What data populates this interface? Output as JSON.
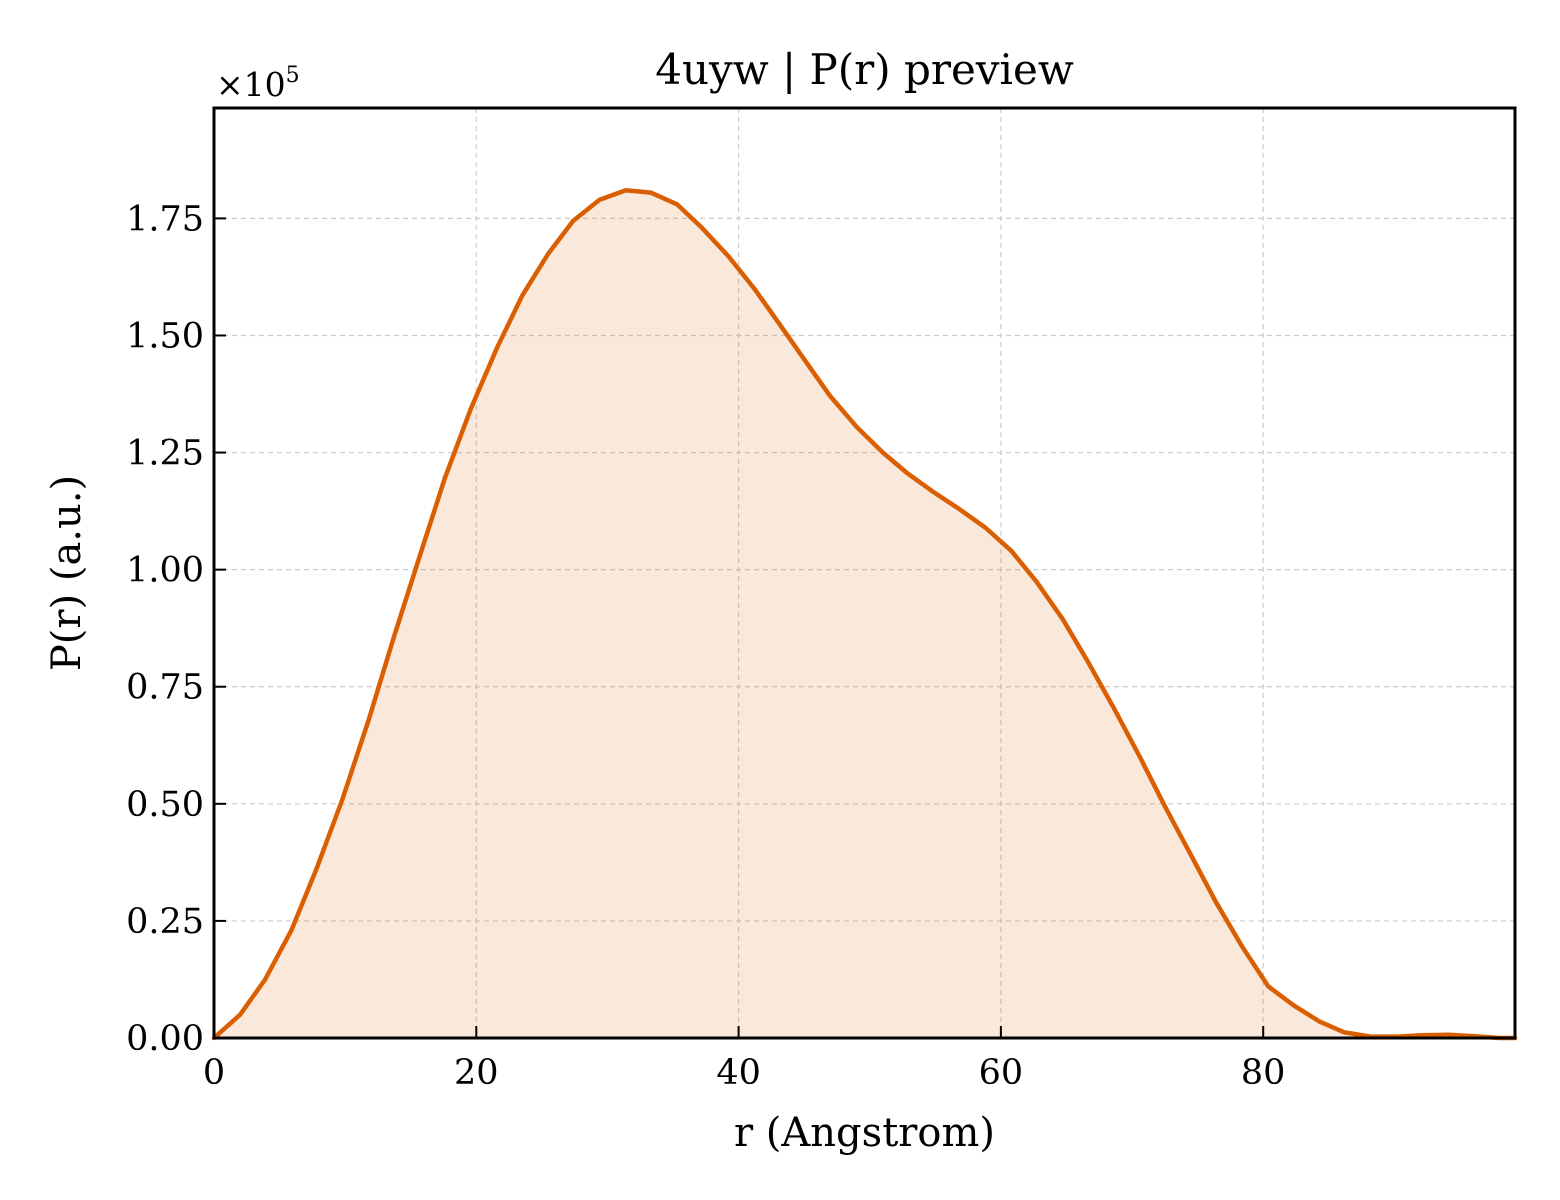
{
  "chart_data": {
    "type": "area",
    "title": "4uyw | P(r) preview",
    "xlabel": "r (Angstrom)",
    "ylabel": "P(r) (a.u.)",
    "y_offset_base": "×10",
    "y_offset_exponent": "5",
    "xlim": [
      0,
      99.2
    ],
    "ylim": [
      0,
      1.9857
    ],
    "y_scale": 100000,
    "x_ticks": [
      0,
      20,
      40,
      60,
      80
    ],
    "x_tick_labels": [
      "0",
      "20",
      "40",
      "60",
      "80"
    ],
    "y_ticks": [
      0,
      0.25,
      0.5,
      0.75,
      1.0,
      1.25,
      1.5,
      1.75
    ],
    "y_tick_labels": [
      "0.00",
      "0.25",
      "0.50",
      "0.75",
      "1.00",
      "1.25",
      "1.50",
      "1.75"
    ],
    "grid": true,
    "line_color": "#d95f02",
    "fill_color": "#d95f02",
    "fill_opacity": 0.14,
    "series": [
      {
        "x": [
          0.0,
          2.0,
          3.9,
          5.9,
          7.8,
          9.8,
          11.8,
          13.7,
          15.7,
          17.6,
          19.6,
          21.6,
          23.5,
          25.5,
          27.4,
          29.4,
          31.4,
          33.3,
          35.3,
          37.2,
          39.2,
          41.2,
          43.1,
          45.1,
          47.0,
          49.0,
          51.0,
          52.9,
          54.9,
          56.8,
          58.8,
          60.8,
          62.7,
          64.7,
          66.6,
          68.6,
          70.6,
          72.5,
          74.5,
          76.4,
          78.4,
          80.4,
          82.3,
          84.3,
          86.2,
          88.2,
          90.2,
          92.1,
          94.1,
          96.0,
          98.0,
          99.2
        ],
        "y": [
          0.0,
          0.05,
          0.125,
          0.23,
          0.36,
          0.51,
          0.68,
          0.855,
          1.03,
          1.195,
          1.345,
          1.475,
          1.585,
          1.675,
          1.745,
          1.79,
          1.81,
          1.805,
          1.78,
          1.73,
          1.67,
          1.6,
          1.525,
          1.445,
          1.37,
          1.305,
          1.25,
          1.205,
          1.165,
          1.13,
          1.09,
          1.04,
          0.975,
          0.895,
          0.805,
          0.705,
          0.6,
          0.495,
          0.39,
          0.29,
          0.195,
          0.11,
          0.07,
          0.035,
          0.012,
          0.003,
          0.003,
          0.006,
          0.007,
          0.004,
          0.0,
          0.0
        ]
      }
    ]
  }
}
